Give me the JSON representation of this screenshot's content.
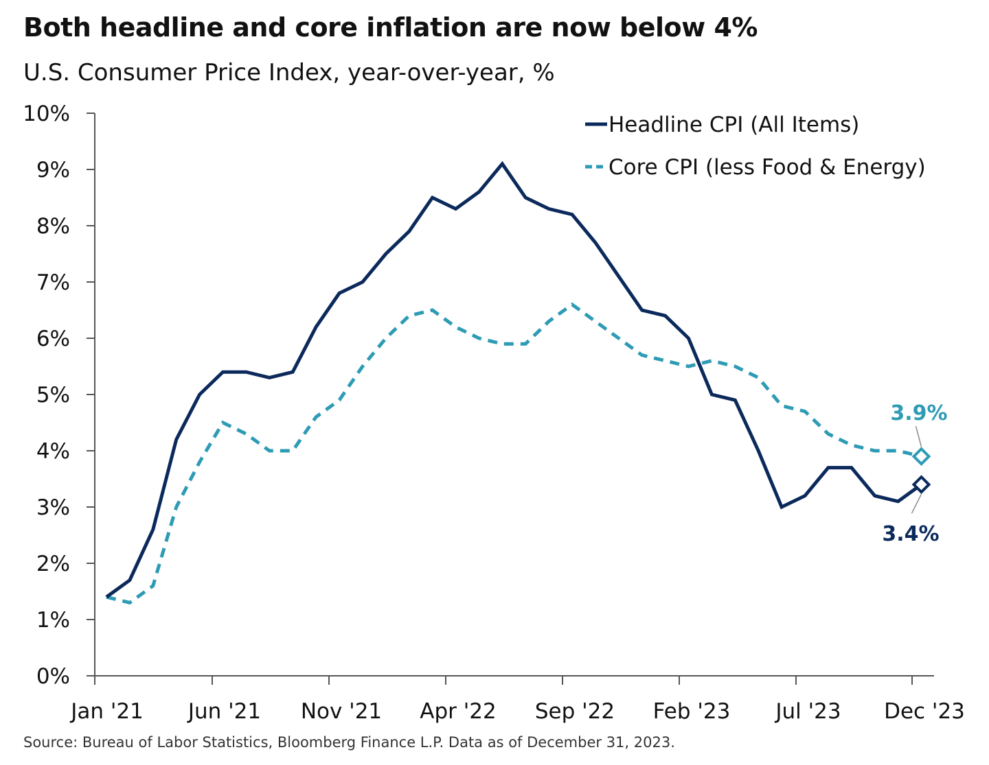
{
  "chart_data": {
    "type": "line",
    "title": "Both headline and core inflation are now below 4%",
    "subtitle": "U.S. Consumer Price Index, year-over-year, %",
    "source": "Source: Bureau of Labor Statistics, Bloomberg Finance L.P. Data as of December 31, 2023.",
    "xlabel": "",
    "ylabel": "",
    "ylim": [
      0,
      10
    ],
    "yticks": [
      0,
      1,
      2,
      3,
      4,
      5,
      6,
      7,
      8,
      9,
      10
    ],
    "ytick_labels": [
      "0%",
      "1%",
      "2%",
      "3%",
      "4%",
      "5%",
      "6%",
      "7%",
      "8%",
      "9%",
      "10%"
    ],
    "x_tick_labels": [
      "Jan '21",
      "Jun '21",
      "Nov '21",
      "Apr '22",
      "Sep '22",
      "Feb '23",
      "Jul '23",
      "Dec '23"
    ],
    "x_tick_indices": [
      0,
      5,
      10,
      15,
      20,
      25,
      30,
      35
    ],
    "months": [
      "Jan '21",
      "Feb '21",
      "Mar '21",
      "Apr '21",
      "May '21",
      "Jun '21",
      "Jul '21",
      "Aug '21",
      "Sep '21",
      "Oct '21",
      "Nov '21",
      "Dec '21",
      "Jan '22",
      "Feb '22",
      "Mar '22",
      "Apr '22",
      "May '22",
      "Jun '22",
      "Jul '22",
      "Aug '22",
      "Sep '22",
      "Oct '22",
      "Nov '22",
      "Dec '22",
      "Jan '23",
      "Feb '23",
      "Mar '23",
      "Apr '23",
      "May '23",
      "Jun '23",
      "Jul '23",
      "Aug '23",
      "Sep '23",
      "Oct '23",
      "Nov '23",
      "Dec '23"
    ],
    "series": [
      {
        "name": "Headline CPI (All Items)",
        "color": "#0b2a5b",
        "style": "solid",
        "values": [
          1.4,
          1.7,
          2.6,
          4.2,
          5.0,
          5.4,
          5.4,
          5.3,
          5.4,
          6.2,
          6.8,
          7.0,
          7.5,
          7.9,
          8.5,
          8.3,
          8.6,
          9.1,
          8.5,
          8.3,
          8.2,
          7.7,
          7.1,
          6.5,
          6.4,
          6.0,
          5.0,
          4.9,
          4.0,
          3.0,
          3.2,
          3.7,
          3.7,
          3.2,
          3.1,
          3.4
        ],
        "end_label": "3.4%"
      },
      {
        "name": "Core CPI (less Food & Energy)",
        "color": "#2e9bb5",
        "style": "dashed",
        "values": [
          1.4,
          1.3,
          1.6,
          3.0,
          3.8,
          4.5,
          4.3,
          4.0,
          4.0,
          4.6,
          4.9,
          5.5,
          6.0,
          6.4,
          6.5,
          6.2,
          6.0,
          5.9,
          5.9,
          6.3,
          6.6,
          6.3,
          6.0,
          5.7,
          5.6,
          5.5,
          5.6,
          5.5,
          5.3,
          4.8,
          4.7,
          4.3,
          4.1,
          4.0,
          4.0,
          3.9
        ],
        "end_label": "3.9%"
      }
    ],
    "legend_position": "top-right"
  }
}
